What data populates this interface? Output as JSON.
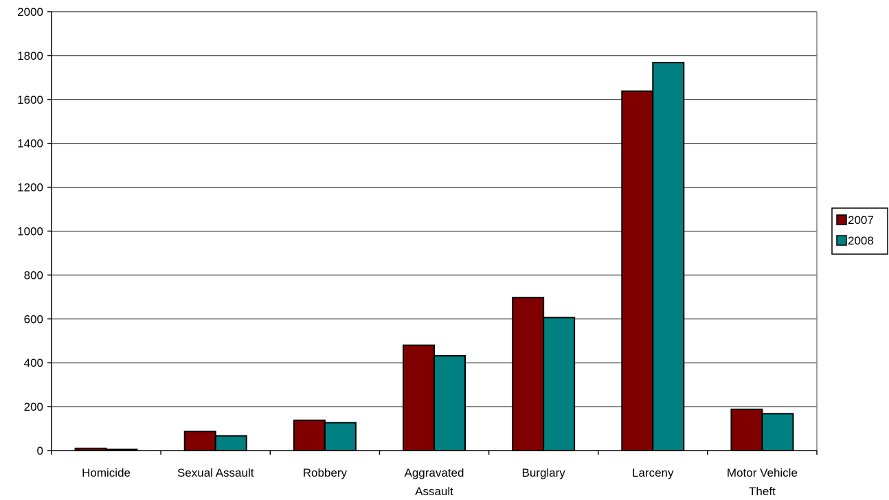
{
  "chart_data": {
    "type": "bar",
    "categories": [
      [
        "Homicide"
      ],
      [
        "Sexual Assault"
      ],
      [
        "Robbery"
      ],
      [
        "Aggravated",
        "Assault"
      ],
      [
        "Burglary"
      ],
      [
        "Larceny"
      ],
      [
        "Motor Vehicle",
        "Theft"
      ]
    ],
    "series": [
      {
        "name": "2007",
        "color": "#800000",
        "values": [
          10,
          87,
          138,
          480,
          697,
          1638,
          188
        ]
      },
      {
        "name": "2008",
        "color": "#008080",
        "values": [
          5,
          67,
          127,
          432,
          606,
          1768,
          168
        ]
      }
    ],
    "ylim": [
      0,
      2000
    ],
    "yticks": [
      0,
      200,
      400,
      600,
      800,
      1000,
      1200,
      1400,
      1600,
      1800,
      2000
    ],
    "grid": true,
    "legend": "right",
    "title": "",
    "xlabel": "",
    "ylabel": ""
  }
}
